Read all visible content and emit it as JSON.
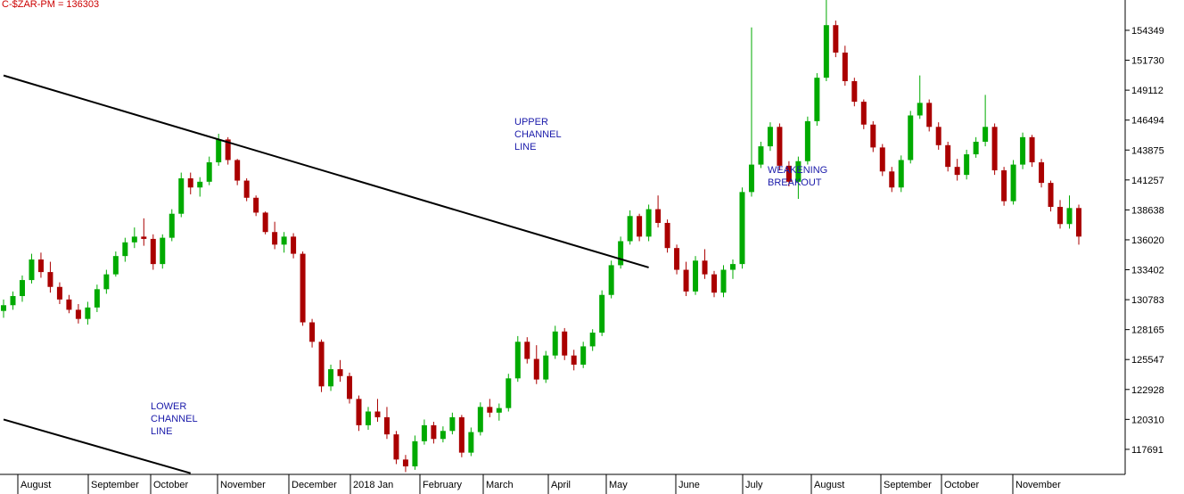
{
  "chart_data": {
    "type": "candlestick",
    "title": "C-$ZAR-PM = 136303",
    "y_axis_position": "right",
    "ylim": [
      115500,
      157000
    ],
    "y_ticks": [
      117691,
      120310,
      122928,
      125547,
      128165,
      130783,
      133402,
      136020,
      138638,
      141257,
      143875,
      146494,
      149112,
      151730,
      154349
    ],
    "x_labels": [
      "August",
      "September",
      "October",
      "November",
      "December",
      "2018 Jan",
      "February",
      "March",
      "April",
      "May",
      "June",
      "July",
      "August",
      "September",
      "October",
      "November"
    ],
    "grid": false,
    "colors": {
      "up": "#00aa00",
      "down": "#aa0000",
      "text": "#000000",
      "title": "#cc0000",
      "annotation": "#1a1aaa",
      "lines": "#000000"
    },
    "annotations": [
      {
        "id": "upper",
        "lines": [
          "UPPER",
          "CHANNEL",
          "LINE"
        ]
      },
      {
        "id": "lower",
        "lines": [
          "LOWER",
          "CHANNEL",
          "LINE"
        ]
      },
      {
        "id": "breakout",
        "lines": [
          "WEAKENING",
          "BREAKOUT"
        ]
      }
    ],
    "channel_lines": [
      {
        "name": "upper",
        "points": [
          [
            0,
            150400
          ],
          [
            69,
            133600
          ]
        ]
      },
      {
        "name": "lower",
        "points": [
          [
            0,
            120300
          ],
          [
            20,
            115600
          ]
        ]
      }
    ],
    "series": [
      {
        "values": [
          [
            129800,
            130800,
            129200,
            130300
          ],
          [
            130300,
            131500,
            129900,
            131100
          ],
          [
            131100,
            132900,
            130600,
            132500
          ],
          [
            132500,
            134800,
            132200,
            134300
          ],
          [
            134300,
            134900,
            132700,
            133200
          ],
          [
            133200,
            134100,
            131400,
            131900
          ],
          [
            131900,
            132300,
            130400,
            130800
          ],
          [
            130800,
            131200,
            129600,
            129900
          ],
          [
            129900,
            130400,
            128700,
            129100
          ],
          [
            129100,
            130600,
            128600,
            130100
          ],
          [
            130100,
            132100,
            129700,
            131700
          ],
          [
            131700,
            133400,
            131300,
            133000
          ],
          [
            133000,
            135000,
            132800,
            134600
          ],
          [
            134600,
            136200,
            134100,
            135800
          ],
          [
            135800,
            137100,
            135300,
            136300
          ],
          [
            136300,
            137900,
            135500,
            136100
          ],
          [
            136100,
            136500,
            133400,
            133900
          ],
          [
            133900,
            136500,
            133500,
            136200
          ],
          [
            136200,
            138700,
            135900,
            138300
          ],
          [
            138300,
            141900,
            138000,
            141400
          ],
          [
            141400,
            141900,
            140000,
            140600
          ],
          [
            140600,
            141500,
            139800,
            141100
          ],
          [
            141100,
            143300,
            140800,
            142800
          ],
          [
            142800,
            145300,
            142500,
            144800
          ],
          [
            144800,
            145000,
            142600,
            143000
          ],
          [
            143000,
            143100,
            140800,
            141200
          ],
          [
            141200,
            141400,
            139400,
            139700
          ],
          [
            139700,
            139900,
            138100,
            138400
          ],
          [
            138400,
            138500,
            136500,
            136700
          ],
          [
            136700,
            137600,
            135200,
            135600
          ],
          [
            135600,
            136700,
            134900,
            136300
          ],
          [
            136300,
            136600,
            134400,
            134800
          ],
          [
            134800,
            135000,
            128500,
            128800
          ],
          [
            128800,
            129100,
            126600,
            127100
          ],
          [
            127100,
            127300,
            122700,
            123200
          ],
          [
            123200,
            125100,
            122800,
            124700
          ],
          [
            124700,
            125500,
            123600,
            124100
          ],
          [
            124100,
            124400,
            121700,
            122100
          ],
          [
            122100,
            122400,
            119300,
            119800
          ],
          [
            119800,
            121400,
            119400,
            121000
          ],
          [
            121000,
            122100,
            120100,
            120500
          ],
          [
            120500,
            121400,
            118600,
            119000
          ],
          [
            119000,
            119300,
            116400,
            116800
          ],
          [
            116800,
            117200,
            115700,
            116200
          ],
          [
            116200,
            118900,
            115900,
            118400
          ],
          [
            118400,
            120300,
            118100,
            119800
          ],
          [
            119800,
            120100,
            118200,
            118600
          ],
          [
            118600,
            119700,
            118300,
            119300
          ],
          [
            119300,
            120900,
            119000,
            120500
          ],
          [
            120500,
            120700,
            117000,
            117400
          ],
          [
            117400,
            119600,
            117100,
            119200
          ],
          [
            119200,
            121800,
            118900,
            121400
          ],
          [
            121400,
            122100,
            120500,
            120900
          ],
          [
            120900,
            121700,
            120200,
            121300
          ],
          [
            121300,
            124300,
            121000,
            123900
          ],
          [
            123900,
            127600,
            123600,
            127100
          ],
          [
            127100,
            127500,
            125200,
            125600
          ],
          [
            125600,
            126800,
            123400,
            123800
          ],
          [
            123800,
            126300,
            123500,
            125900
          ],
          [
            125900,
            128500,
            125600,
            128000
          ],
          [
            128000,
            128300,
            125500,
            125900
          ],
          [
            125900,
            126400,
            124600,
            125100
          ],
          [
            125100,
            127100,
            124800,
            126700
          ],
          [
            126700,
            128200,
            126300,
            127900
          ],
          [
            127900,
            131600,
            127600,
            131200
          ],
          [
            131200,
            134200,
            130900,
            133800
          ],
          [
            133800,
            136300,
            133500,
            135900
          ],
          [
            135900,
            138600,
            135600,
            138100
          ],
          [
            138100,
            138300,
            135900,
            136300
          ],
          [
            136300,
            139100,
            135900,
            138700
          ],
          [
            138700,
            139900,
            137100,
            137500
          ],
          [
            137500,
            137800,
            134900,
            135300
          ],
          [
            135300,
            135600,
            133000,
            133400
          ],
          [
            133400,
            134100,
            131100,
            131500
          ],
          [
            131500,
            134600,
            131200,
            134200
          ],
          [
            134200,
            135200,
            132600,
            133000
          ],
          [
            133000,
            133300,
            131000,
            131400
          ],
          [
            131400,
            133800,
            131000,
            133400
          ],
          [
            133400,
            134300,
            132600,
            133900
          ],
          [
            133900,
            140600,
            133500,
            140200
          ],
          [
            140200,
            154600,
            139800,
            142600
          ],
          [
            142600,
            144600,
            142300,
            144200
          ],
          [
            144200,
            146300,
            143800,
            145900
          ],
          [
            145900,
            146200,
            142100,
            142500
          ],
          [
            142500,
            142900,
            140700,
            141100
          ],
          [
            141100,
            143300,
            139600,
            142900
          ],
          [
            142900,
            146800,
            142600,
            146400
          ],
          [
            146400,
            150600,
            146000,
            150200
          ],
          [
            150200,
            157200,
            149900,
            154800
          ],
          [
            154800,
            155200,
            152000,
            152400
          ],
          [
            152400,
            153000,
            149500,
            149900
          ],
          [
            149900,
            150200,
            147700,
            148100
          ],
          [
            148100,
            148300,
            145700,
            146100
          ],
          [
            146100,
            146400,
            143700,
            144100
          ],
          [
            144100,
            144400,
            141600,
            142000
          ],
          [
            142000,
            142400,
            140200,
            140600
          ],
          [
            140600,
            143400,
            140200,
            143000
          ],
          [
            143000,
            147300,
            142700,
            146900
          ],
          [
            146900,
            150400,
            146600,
            148000
          ],
          [
            148000,
            148300,
            145500,
            145900
          ],
          [
            145900,
            146300,
            143900,
            144300
          ],
          [
            144300,
            144600,
            142000,
            142400
          ],
          [
            142400,
            143100,
            141200,
            141700
          ],
          [
            141700,
            143900,
            141300,
            143500
          ],
          [
            143500,
            145000,
            143200,
            144600
          ],
          [
            144600,
            148700,
            144200,
            145900
          ],
          [
            145900,
            146200,
            141700,
            142100
          ],
          [
            142100,
            142400,
            139000,
            139400
          ],
          [
            139400,
            143000,
            139100,
            142600
          ],
          [
            142600,
            145400,
            142200,
            145000
          ],
          [
            145000,
            145200,
            142400,
            142800
          ],
          [
            142800,
            143100,
            140600,
            141000
          ],
          [
            141000,
            141200,
            138500,
            138900
          ],
          [
            138900,
            139500,
            137000,
            137400
          ],
          [
            137400,
            139900,
            137000,
            138800
          ],
          [
            138800,
            139100,
            135600,
            136303
          ]
        ]
      }
    ]
  }
}
